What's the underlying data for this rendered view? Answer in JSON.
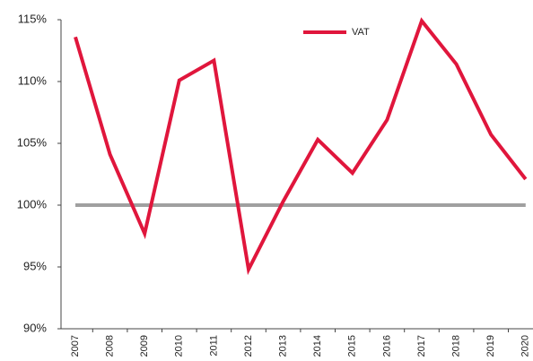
{
  "chart_data": {
    "type": "line",
    "categories": [
      "2007",
      "2008",
      "2009",
      "2010",
      "2011",
      "2012",
      "2013",
      "2014",
      "2015",
      "2016",
      "2017",
      "2018",
      "2019",
      "2020"
    ],
    "series": [
      {
        "name": "VAT",
        "color": "#e0163c",
        "values": [
          113.6,
          104.1,
          97.7,
          110.1,
          111.7,
          94.8,
          100.3,
          105.3,
          102.6,
          106.9,
          114.9,
          111.4,
          105.7,
          102.1
        ]
      }
    ],
    "reference_line": {
      "value": 100,
      "color": "#a0a0a0"
    },
    "ylim": [
      90,
      115
    ],
    "yticks": [
      {
        "value": 90,
        "label": "90%"
      },
      {
        "value": 95,
        "label": "95%"
      },
      {
        "value": 100,
        "label": "100%"
      },
      {
        "value": 105,
        "label": "105%"
      },
      {
        "value": 110,
        "label": "110%"
      },
      {
        "value": 115,
        "label": "115%"
      }
    ],
    "grid": false,
    "legend": "top"
  }
}
